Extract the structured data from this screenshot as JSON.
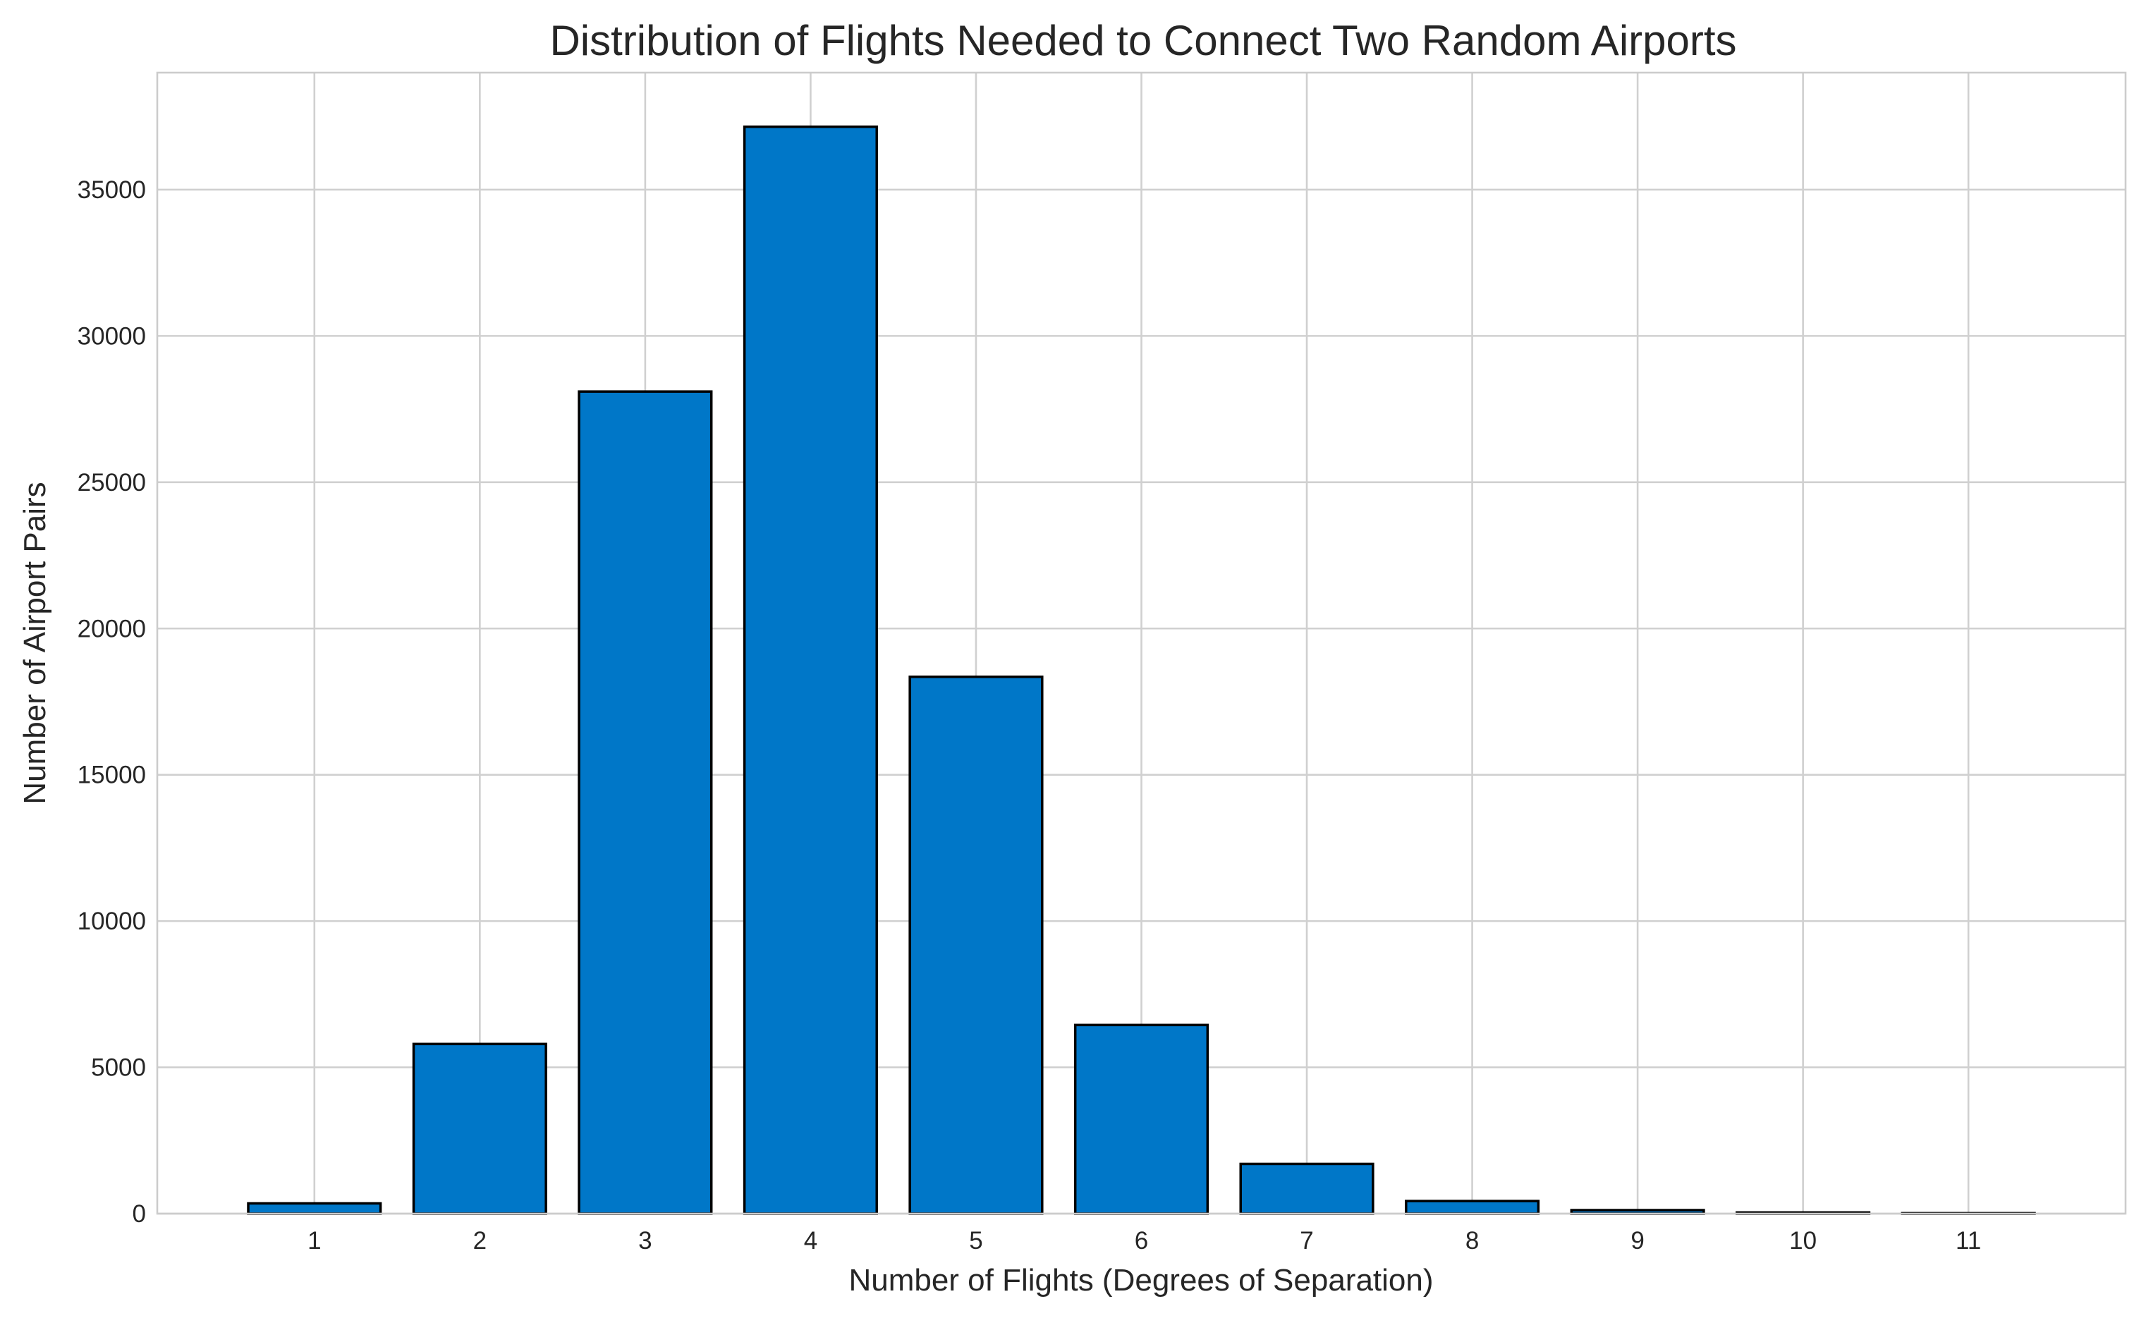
{
  "chart_data": {
    "type": "bar",
    "title": "Distribution of Flights Needed to Connect Two Random Airports",
    "xlabel": "Number of Flights (Degrees of Separation)",
    "ylabel": "Number of Airport Pairs",
    "categories": [
      "1",
      "2",
      "3",
      "4",
      "5",
      "6",
      "7",
      "8",
      "9",
      "10",
      "11"
    ],
    "values": [
      350,
      5800,
      28100,
      37150,
      18350,
      6450,
      1700,
      430,
      120,
      40,
      15
    ],
    "xlim": [
      0.05,
      11.95
    ],
    "ylim": [
      0,
      39000
    ],
    "yticks": [
      0,
      5000,
      10000,
      15000,
      20000,
      25000,
      30000,
      35000
    ],
    "ytick_labels": [
      "0",
      "5000",
      "10000",
      "15000",
      "20000",
      "25000",
      "30000",
      "35000"
    ],
    "bar_color": "#0077c8",
    "bar_edge_color": "#000000",
    "grid": true,
    "legend": "none"
  }
}
